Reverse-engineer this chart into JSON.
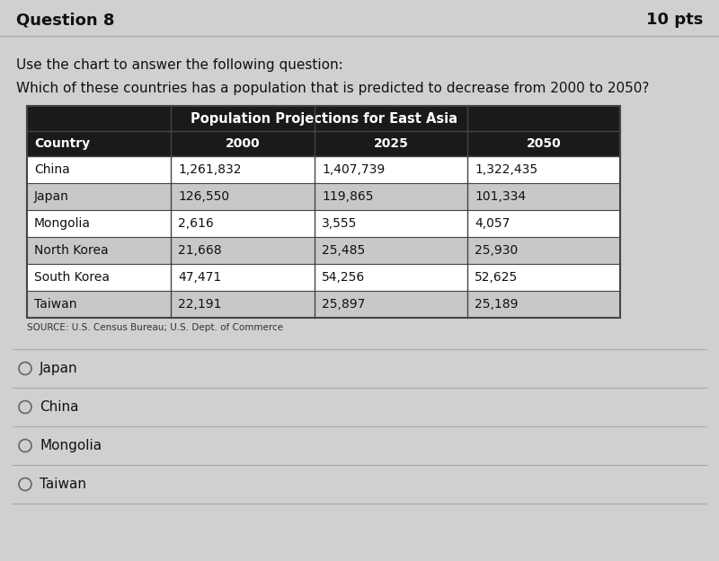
{
  "question_label": "Question 8",
  "points_label": "10 pts",
  "instruction_line1": "Use the chart to answer the following question:",
  "instruction_line2": "Which of these countries has a population that is predicted to decrease from 2000 to 2050?",
  "table_title": "Population Projections for East Asia",
  "headers": [
    "Country",
    "2000",
    "2025",
    "2050"
  ],
  "rows": [
    [
      "China",
      "1,261,832",
      "1,407,739",
      "1,322,435"
    ],
    [
      "Japan",
      "126,550",
      "119,865",
      "101,334"
    ],
    [
      "Mongolia",
      "2,616",
      "3,555",
      "4,057"
    ],
    [
      "North Korea",
      "21,668",
      "25,485",
      "25,930"
    ],
    [
      "South Korea",
      "47,471",
      "54,256",
      "52,625"
    ],
    [
      "Taiwan",
      "22,191",
      "25,897",
      "25,189"
    ]
  ],
  "source_text": "SOURCE: U.S. Census Bureau; U.S. Dept. of Commerce",
  "answer_choices": [
    "Japan",
    "China",
    "Mongolia",
    "Taiwan"
  ],
  "page_bg": "#d0d0d0",
  "header_title_bg": "#1a1a1a",
  "header_title_fg": "#ffffff",
  "odd_row_bg": "#ffffff",
  "even_row_bg": "#c8c8c8",
  "table_border_color": "#444444",
  "divider_color": "#aaaaaa",
  "text_color": "#111111",
  "source_color": "#333333"
}
